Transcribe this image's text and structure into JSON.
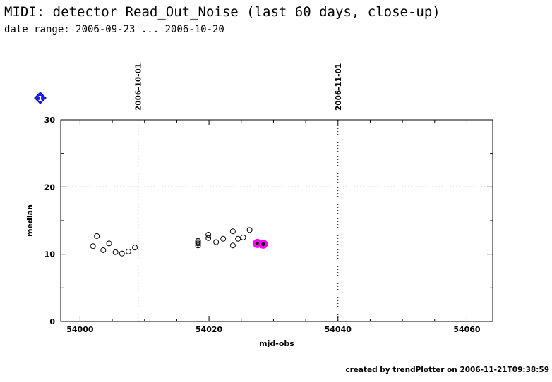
{
  "header": {
    "title": "MIDI: detector Read_Out_Noise (last 60 days, close-up)",
    "subtitle": "date range: 2006-09-23 ... 2006-10-20"
  },
  "footer": {
    "text": "created by trendPlotter on 2006-11-21T09:38:59"
  },
  "badge": {
    "label": "1",
    "color": "#1a1aff"
  },
  "chart_data": {
    "type": "scatter",
    "title": "",
    "xlabel": "mjd-obs",
    "ylabel": "median",
    "xlim": [
      53997,
      54064
    ],
    "ylim": [
      0,
      30
    ],
    "xticks": [
      54000,
      54020,
      54040,
      54060
    ],
    "xtick_labels": [
      "54000",
      "54020",
      "54040",
      "54060"
    ],
    "yticks": [
      0,
      10,
      20,
      30
    ],
    "ytick_labels": [
      "0",
      "10",
      "20",
      "30"
    ],
    "grid": {
      "horizontal": [
        20
      ],
      "vertical": [
        54009,
        54040
      ]
    },
    "date_markers": [
      {
        "label": "2006-10-01",
        "x": 54009
      },
      {
        "label": "2006-11-01",
        "x": 54040
      }
    ],
    "series": [
      {
        "marker": "open-circle",
        "x": [
          54002,
          54002.6,
          54003.6,
          54004.5,
          54005.5,
          54006.5,
          54007.5,
          54008.5,
          54018.3,
          54018.3,
          54018.3,
          54018.3,
          54019.9,
          54019.9,
          54021.1,
          54022.2,
          54023.7,
          54023.7,
          54024.5,
          54025.3,
          54026.3
        ],
        "y": [
          11.2,
          12.7,
          10.6,
          11.6,
          10.3,
          10.1,
          10.4,
          11.0,
          11.3,
          11.6,
          11.8,
          12.0,
          12.4,
          12.9,
          11.8,
          12.3,
          11.3,
          13.4,
          12.3,
          12.5,
          13.6
        ]
      },
      {
        "marker": "filled-dot-highlighted",
        "color": "#ff00ff",
        "x": [
          54027.5,
          54028.4
        ],
        "y": [
          11.6,
          11.5
        ]
      }
    ]
  }
}
